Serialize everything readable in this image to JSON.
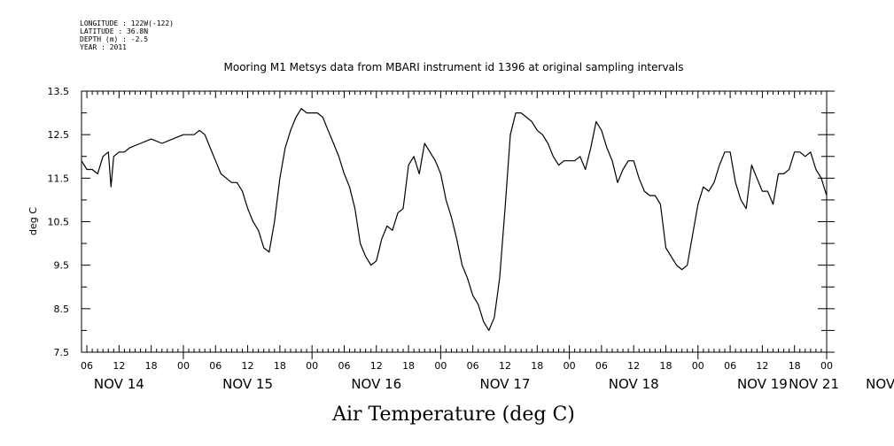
{
  "metadata": {
    "longitude": "LONGITUDE : 122W(-122)",
    "latitude": "LATITUDE : 36.8N",
    "depth": "DEPTH (m) : -2.5",
    "year": "YEAR : 2011"
  },
  "chart_data": {
    "type": "line",
    "title": "Mooring M1 Metsys data from MBARI instrument id 1396 at original sampling intervals",
    "xlabel": "Air Temperature (deg C)",
    "ylabel": "deg C",
    "ylim": [
      7.5,
      13.5
    ],
    "yticks": [
      "7.5",
      "8.5",
      "9.5",
      "10.5",
      "11.5",
      "12.5",
      "13.5"
    ],
    "x_range_hours_since_nov14_00": [
      5,
      144
    ],
    "hour_ticks": [
      "06",
      "12",
      "18",
      "00",
      "06",
      "12",
      "18",
      "00",
      "06",
      "12",
      "18",
      "00",
      "06",
      "12",
      "18",
      "00",
      "06",
      "12",
      "18",
      "00",
      "06",
      "12",
      "18",
      "00",
      "06",
      "12",
      "18",
      "00",
      "06",
      "12",
      "18",
      "00",
      "06"
    ],
    "day_labels": [
      "NOV 14",
      "NOV 15",
      "NOV 16",
      "NOV 17",
      "NOV 18",
      "NOV 19",
      "NOV 20",
      "NOV 21"
    ],
    "series": [
      {
        "points": [
          [
            5,
            11.9
          ],
          [
            6,
            11.7
          ],
          [
            7,
            11.7
          ],
          [
            8,
            11.6
          ],
          [
            9,
            12.0
          ],
          [
            10,
            12.1
          ],
          [
            10.5,
            11.3
          ],
          [
            11,
            12.0
          ],
          [
            12,
            12.1
          ],
          [
            13,
            12.1
          ],
          [
            14,
            12.2
          ],
          [
            16,
            12.3
          ],
          [
            18,
            12.4
          ],
          [
            20,
            12.3
          ],
          [
            22,
            12.4
          ],
          [
            24,
            12.5
          ],
          [
            26,
            12.5
          ],
          [
            27,
            12.6
          ],
          [
            28,
            12.5
          ],
          [
            29,
            12.2
          ],
          [
            30,
            11.9
          ],
          [
            31,
            11.6
          ],
          [
            32,
            11.5
          ],
          [
            33,
            11.4
          ],
          [
            34,
            11.4
          ],
          [
            35,
            11.2
          ],
          [
            36,
            10.8
          ],
          [
            37,
            10.5
          ],
          [
            38,
            10.3
          ],
          [
            39,
            9.9
          ],
          [
            40,
            9.8
          ],
          [
            41,
            10.5
          ],
          [
            42,
            11.5
          ],
          [
            43,
            12.2
          ],
          [
            44,
            12.6
          ],
          [
            45,
            12.9
          ],
          [
            46,
            13.1
          ],
          [
            47,
            13.0
          ],
          [
            48,
            13.0
          ],
          [
            49,
            13.0
          ],
          [
            50,
            12.9
          ],
          [
            51,
            12.6
          ],
          [
            52,
            12.3
          ],
          [
            53,
            12.0
          ],
          [
            54,
            11.6
          ],
          [
            55,
            11.3
          ],
          [
            56,
            10.8
          ],
          [
            57,
            10.0
          ],
          [
            58,
            9.7
          ],
          [
            59,
            9.5
          ],
          [
            60,
            9.6
          ],
          [
            61,
            10.1
          ],
          [
            62,
            10.4
          ],
          [
            63,
            10.3
          ],
          [
            64,
            10.7
          ],
          [
            65,
            10.8
          ],
          [
            66,
            11.8
          ],
          [
            67,
            12.0
          ],
          [
            68,
            11.6
          ],
          [
            69,
            12.3
          ],
          [
            70,
            12.1
          ],
          [
            71,
            11.9
          ],
          [
            72,
            11.6
          ],
          [
            73,
            11.0
          ],
          [
            74,
            10.6
          ],
          [
            75,
            10.1
          ],
          [
            76,
            9.5
          ],
          [
            77,
            9.2
          ],
          [
            78,
            8.8
          ],
          [
            79,
            8.6
          ],
          [
            80,
            8.2
          ],
          [
            81,
            8.0
          ],
          [
            82,
            8.3
          ],
          [
            83,
            9.2
          ],
          [
            84,
            10.8
          ],
          [
            85,
            12.5
          ],
          [
            86,
            13.0
          ],
          [
            87,
            13.0
          ],
          [
            88,
            12.9
          ],
          [
            89,
            12.8
          ],
          [
            90,
            12.6
          ],
          [
            91,
            12.5
          ],
          [
            92,
            12.3
          ],
          [
            93,
            12.0
          ],
          [
            94,
            11.8
          ],
          [
            95,
            11.9
          ],
          [
            96,
            11.9
          ],
          [
            97,
            11.9
          ],
          [
            98,
            12.0
          ],
          [
            99,
            11.7
          ],
          [
            100,
            12.2
          ],
          [
            101,
            12.8
          ],
          [
            102,
            12.6
          ],
          [
            103,
            12.2
          ],
          [
            104,
            11.9
          ],
          [
            105,
            11.4
          ],
          [
            106,
            11.7
          ],
          [
            107,
            11.9
          ],
          [
            108,
            11.9
          ],
          [
            109,
            11.5
          ],
          [
            110,
            11.2
          ],
          [
            111,
            11.1
          ],
          [
            112,
            11.1
          ],
          [
            113,
            10.9
          ],
          [
            114,
            9.9
          ],
          [
            115,
            9.7
          ],
          [
            116,
            9.5
          ],
          [
            117,
            9.4
          ],
          [
            118,
            9.5
          ],
          [
            119,
            10.2
          ],
          [
            120,
            10.9
          ],
          [
            121,
            11.3
          ],
          [
            122,
            11.2
          ],
          [
            123,
            11.4
          ],
          [
            124,
            11.8
          ],
          [
            125,
            12.1
          ],
          [
            126,
            12.1
          ],
          [
            127,
            11.4
          ],
          [
            128,
            11.0
          ],
          [
            129,
            10.8
          ],
          [
            130,
            11.8
          ],
          [
            131,
            11.5
          ],
          [
            132,
            11.2
          ],
          [
            133,
            11.2
          ],
          [
            134,
            10.9
          ],
          [
            135,
            11.6
          ],
          [
            136,
            11.6
          ],
          [
            137,
            11.7
          ],
          [
            138,
            12.1
          ],
          [
            139,
            12.1
          ],
          [
            140,
            12.0
          ],
          [
            141,
            12.1
          ],
          [
            142,
            11.7
          ],
          [
            143,
            11.5
          ],
          [
            144,
            11.1
          ]
        ]
      }
    ]
  }
}
